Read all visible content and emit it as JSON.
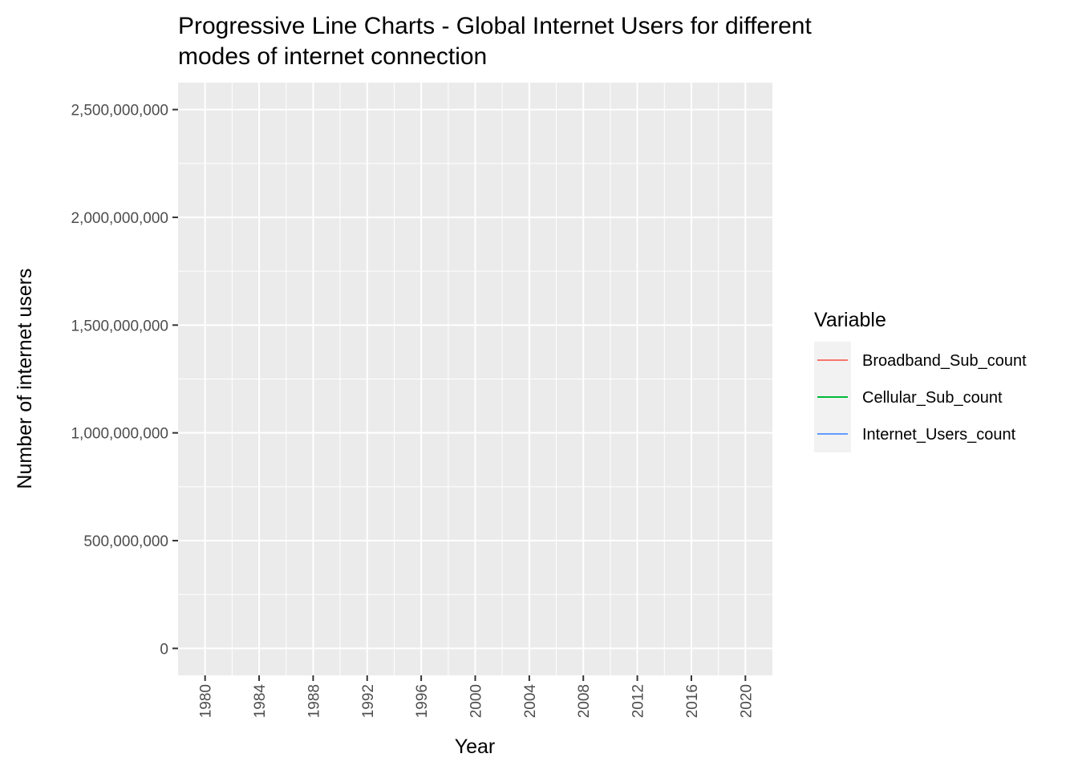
{
  "chart_data": {
    "type": "line",
    "title": "Progressive Line Charts - Global Internet Users for different modes of internet connection",
    "title_lines": [
      "Progressive Line Charts - Global Internet Users for different",
      "modes of internet connection"
    ],
    "xlabel": "Year",
    "ylabel": "Number of internet users",
    "xlim": [
      1978,
      2022
    ],
    "ylim": [
      -125000000,
      2625000000
    ],
    "x_ticks": [
      1980,
      1984,
      1988,
      1992,
      1996,
      2000,
      2004,
      2008,
      2012,
      2016,
      2020
    ],
    "y_ticks": [
      0,
      500000000,
      1000000000,
      1500000000,
      2000000000,
      2500000000
    ],
    "y_tick_labels": [
      "0",
      "500,000,000",
      "1,000,000,000",
      "1,500,000,000",
      "2,000,000,000",
      "2,500,000,000"
    ],
    "grid": true,
    "legend": {
      "title": "Variable",
      "position": "right",
      "entries": [
        {
          "label": "Broadband_Sub_count",
          "color": "#F8766D"
        },
        {
          "label": "Cellular_Sub_count",
          "color": "#00BA38"
        },
        {
          "label": "Internet_Users_count",
          "color": "#619CFF"
        }
      ]
    },
    "series": [
      {
        "name": "Broadband_Sub_count",
        "color": "#F8766D",
        "x": [],
        "values": []
      },
      {
        "name": "Cellular_Sub_count",
        "color": "#00BA38",
        "x": [],
        "values": []
      },
      {
        "name": "Internet_Users_count",
        "color": "#619CFF",
        "x": [],
        "values": []
      }
    ],
    "panel_background": "#EBEBEB",
    "grid_color": "#FFFFFF"
  }
}
